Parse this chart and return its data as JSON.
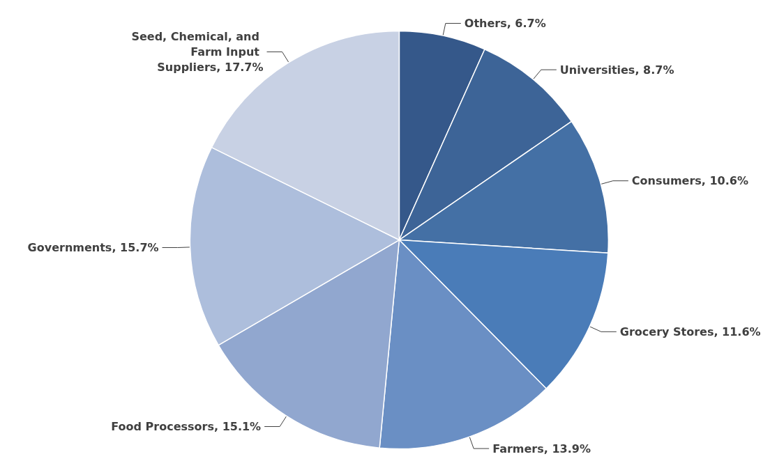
{
  "chart_data": {
    "type": "pie",
    "categories": [
      "Others",
      "Universities",
      "Consumers",
      "Grocery Stores",
      "Farmers",
      "Food Processors",
      "Governments",
      "Seed, Chemical, and Farm Input Suppliers"
    ],
    "values": [
      6.7,
      8.7,
      10.6,
      11.6,
      13.9,
      15.1,
      15.7,
      17.7
    ],
    "value_labels": [
      "6.7%",
      "8.7%",
      "10.6%",
      "11.6%",
      "13.9%",
      "15.1%",
      "15.7%",
      "17.7%"
    ],
    "colors": [
      "#35588a",
      "#3d6497",
      "#4470a5",
      "#4a7cb8",
      "#6a8fc4",
      "#91a7cf",
      "#adbedc",
      "#c8d1e4"
    ]
  }
}
